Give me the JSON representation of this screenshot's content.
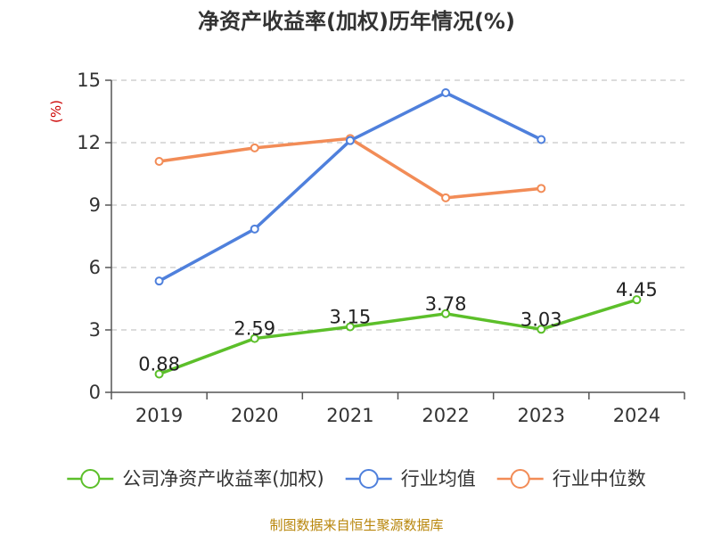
{
  "chart_data": {
    "type": "line",
    "title": "净资产收益率(加权)历年情况(%)",
    "y_unit": "(%)",
    "categories": [
      "2019",
      "2020",
      "2021",
      "2022",
      "2023",
      "2024"
    ],
    "ylim": [
      0,
      15
    ],
    "yticks": [
      0,
      3,
      6,
      9,
      12,
      15
    ],
    "grid": true,
    "legend_position": "bottom",
    "series": [
      {
        "name": "公司净资产收益率(加权)",
        "color": "#5cbf2a",
        "values": [
          0.88,
          2.59,
          3.15,
          3.78,
          3.03,
          4.45
        ],
        "show_labels": true
      },
      {
        "name": "行业均值",
        "color": "#4f80dc",
        "values": [
          5.35,
          7.85,
          12.1,
          14.4,
          12.15,
          null
        ],
        "show_labels": false
      },
      {
        "name": "行业中位数",
        "color": "#f28c57",
        "values": [
          11.1,
          11.75,
          12.2,
          9.35,
          9.8,
          null
        ],
        "show_labels": false
      }
    ],
    "source": "制图数据来自恒生聚源数据库"
  }
}
